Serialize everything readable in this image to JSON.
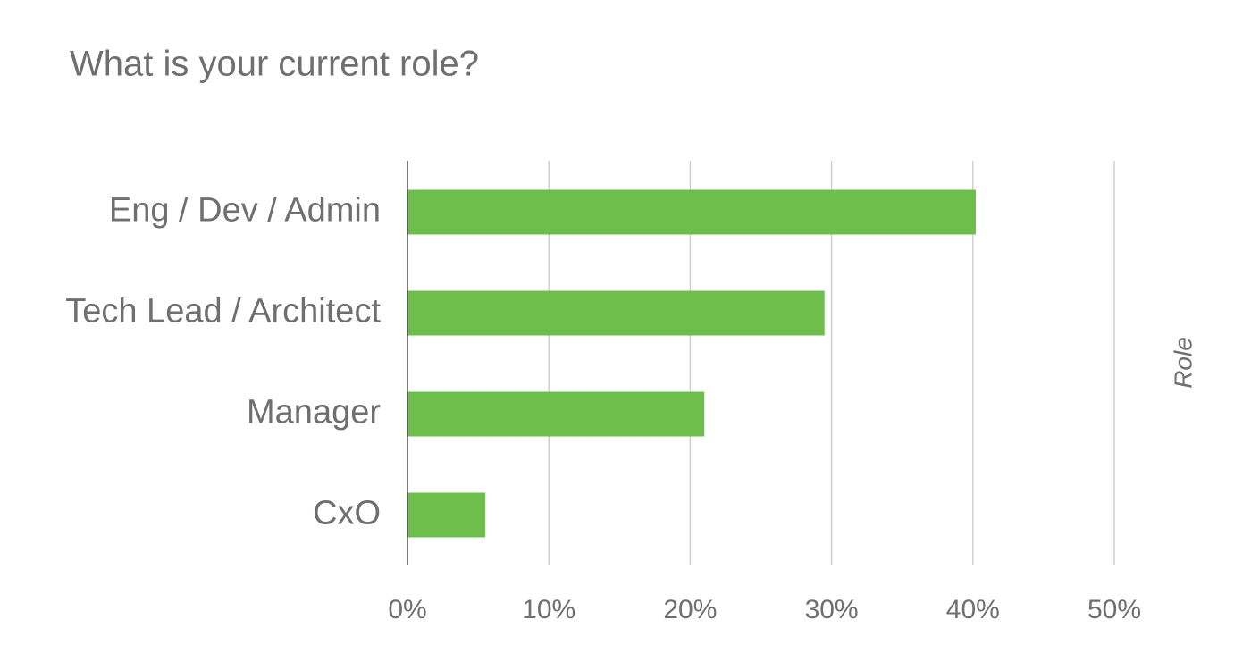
{
  "chart_data": {
    "type": "bar",
    "orientation": "horizontal",
    "title": "What is your current role?",
    "y_axis_label": "Role",
    "categories": [
      "Eng / Dev / Admin",
      "Tech Lead / Architect",
      "Manager",
      "CxO"
    ],
    "values": [
      40.2,
      29.5,
      21.0,
      5.5
    ],
    "color": "#6dbe4b",
    "xlim": [
      0,
      50
    ],
    "xticks": [
      {
        "value": 0,
        "label": "0%"
      },
      {
        "value": 10,
        "label": "10%"
      },
      {
        "value": 20,
        "label": "20%"
      },
      {
        "value": 30,
        "label": "30%"
      },
      {
        "value": 40,
        "label": "40%"
      },
      {
        "value": 50,
        "label": "50%"
      }
    ],
    "grid": true
  }
}
